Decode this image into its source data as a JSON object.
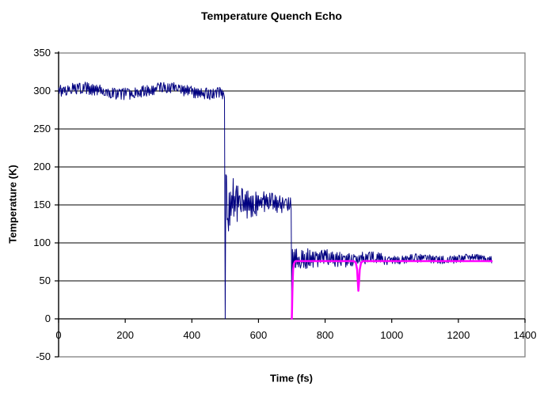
{
  "chart_data": {
    "type": "line",
    "title": "Temperature Quench Echo",
    "xlabel": "Time (fs)",
    "ylabel": "Temperature (K)",
    "xlim": [
      0,
      1400
    ],
    "ylim": [
      -50,
      350
    ],
    "x_ticks": [
      0,
      200,
      400,
      600,
      800,
      1000,
      1200,
      1400
    ],
    "y_ticks": [
      -50,
      0,
      50,
      100,
      150,
      200,
      250,
      300,
      350
    ],
    "grid": "horizontal-black-every-50K",
    "legend": "none",
    "colors": {
      "gridline": "#000000",
      "plot_border": "#808080",
      "axis": "#000000",
      "series1": "#000080",
      "series2": "#FF00FF"
    },
    "series": [
      {
        "id": "navy-temperature-series",
        "color": "#000080",
        "stroke_width": 1,
        "reading": "Noisy instantaneous temperature: ~300 K from 0-500 fs; quenched to 0 K at 500 fs; recovers oscillating 110-190 K settling near ~150 K until 700 fs; quenched to 0 K again at 700 fs; recovers to ~79 K with decaying noise out to 1300 fs",
        "segments": [
          {
            "type": "noisy",
            "t0": 0,
            "t1": 498,
            "dt": 2,
            "mean": 300,
            "amp_start": 8,
            "amp_end": 8,
            "tau": 99999,
            "wobble_amp": 4,
            "wobble_period": 260
          },
          {
            "type": "points",
            "pts": [
              [
                500,
                0
              ]
            ]
          },
          {
            "type": "noisy",
            "t0": 502,
            "t1": 698,
            "dt": 2,
            "mean": 152,
            "amp_start": 42,
            "amp_end": 10,
            "tau": 55,
            "wobble_amp": 2,
            "wobble_period": 100
          },
          {
            "type": "points",
            "pts": [
              [
                700,
                0
              ]
            ]
          },
          {
            "type": "noisy",
            "t0": 702,
            "t1": 1300,
            "dt": 2,
            "mean": 79,
            "amp_start": 16,
            "amp_end": 4,
            "tau": 220,
            "wobble_amp": 1.5,
            "wobble_period": 150
          }
        ]
      },
      {
        "id": "magenta-echo-series",
        "color": "#FF00FF",
        "stroke_width": 2.5,
        "reading": "Smooth temperature curve: starts at 0 K at 700 fs, rises to a flat ~76 K plateau, shows an echo dip to ~37 K at ~900 fs, then flat ~76 K out to 1300 fs",
        "segments": [
          {
            "type": "points",
            "pts": [
              [
                700,
                0
              ],
              [
                700.5,
                8
              ],
              [
                701,
                18
              ],
              [
                702,
                38
              ],
              [
                703,
                55
              ],
              [
                704,
                65
              ],
              [
                706,
                72
              ],
              [
                709,
                75
              ],
              [
                712,
                76
              ],
              [
                886,
                76
              ],
              [
                892,
                74
              ],
              [
                896,
                65
              ],
              [
                898,
                50
              ],
              [
                900,
                37
              ],
              [
                902,
                50
              ],
              [
                904,
                65
              ],
              [
                908,
                74
              ],
              [
                914,
                76
              ],
              [
                1300,
                76
              ]
            ]
          }
        ]
      }
    ]
  }
}
